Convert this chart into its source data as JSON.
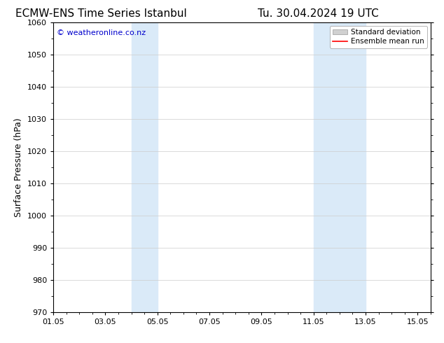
{
  "title_left": "ECMW-ENS Time Series Istanbul",
  "title_right": "Tu. 30.04.2024 19 UTC",
  "ylabel": "Surface Pressure (hPa)",
  "ylim": [
    970,
    1060
  ],
  "yticks": [
    970,
    980,
    990,
    1000,
    1010,
    1020,
    1030,
    1040,
    1050,
    1060
  ],
  "xlim_start": 0.0,
  "xlim_end": 14.0,
  "xtick_labels": [
    "01.05",
    "03.05",
    "05.05",
    "07.05",
    "09.05",
    "11.05",
    "13.05",
    "15.05"
  ],
  "xtick_positions": [
    0,
    2,
    4,
    6,
    8,
    10,
    12,
    14
  ],
  "shaded_bands": [
    {
      "x_start": 3.0,
      "x_end": 4.0
    },
    {
      "x_start": 10.0,
      "x_end": 12.0
    }
  ],
  "shade_color": "#daeaf8",
  "watermark": "© weatheronline.co.nz",
  "watermark_color": "#0000cc",
  "legend_std_label": "Standard deviation",
  "legend_mean_label": "Ensemble mean run",
  "legend_std_color": "#d0d0d0",
  "legend_mean_color": "#ff0000",
  "bg_color": "#ffffff",
  "grid_color": "#cccccc",
  "title_fontsize": 11,
  "label_fontsize": 9,
  "tick_fontsize": 8,
  "watermark_fontsize": 8
}
